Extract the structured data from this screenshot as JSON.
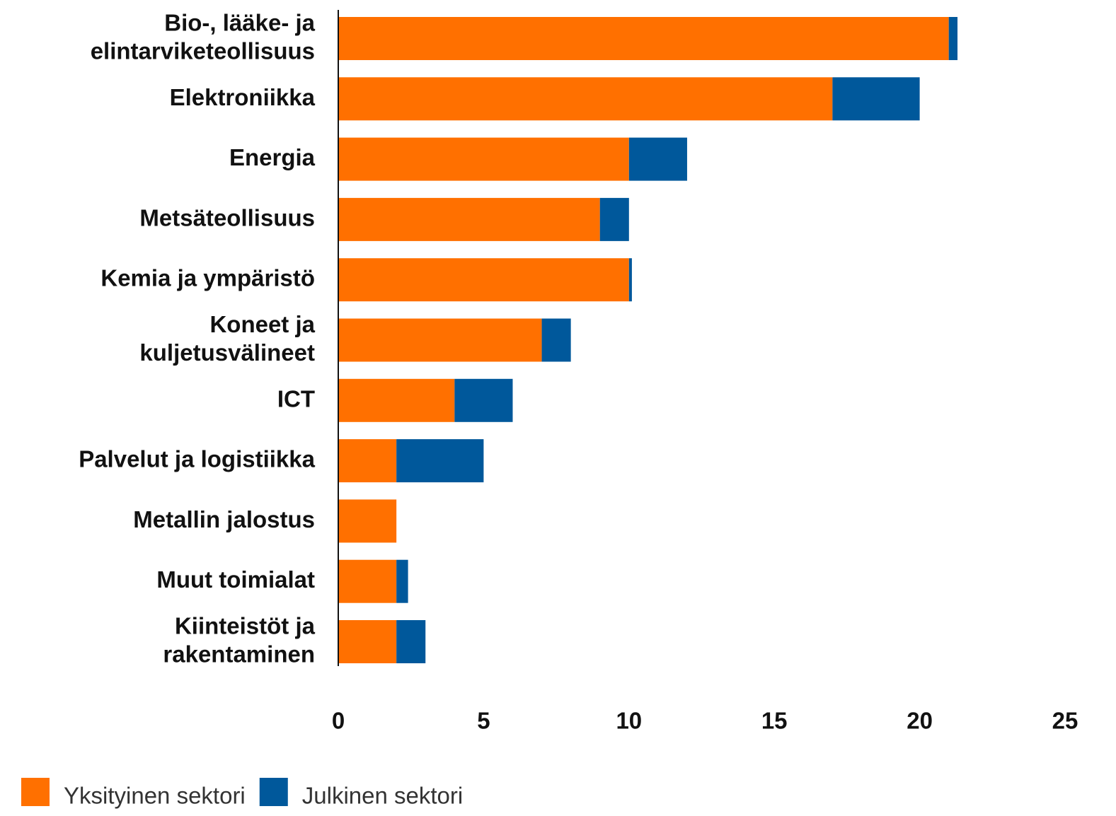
{
  "chart_data": {
    "type": "stacked-barh",
    "categories": [
      "Bio-, lääke- ja\nelintarviketeollisuus",
      "Elektroniikka",
      "Energia",
      "Metsäteollisuus",
      "Kemia ja ympäristö",
      "Koneet ja\nkuljetusvälineet",
      "ICT",
      "Palvelut ja logistiikka",
      "Metallin jalostus",
      "Muut toimialat",
      "Kiinteistöt ja\nrakentaminen"
    ],
    "series": [
      {
        "name": "Yksityinen sektori",
        "color": "#ff7000",
        "values": [
          21.0,
          17.0,
          10.0,
          9.0,
          10.0,
          7.0,
          4.0,
          2.0,
          2.0,
          2.0,
          2.0
        ]
      },
      {
        "name": "Julkinen sektori",
        "color": "#00589b",
        "values": [
          0.3,
          3.0,
          2.0,
          1.0,
          0.1,
          1.0,
          2.0,
          3.0,
          0,
          0.4,
          1.0
        ]
      }
    ],
    "xlim": [
      0,
      25
    ],
    "xticks": [
      0,
      5,
      10,
      15,
      20,
      25
    ],
    "grid": false
  }
}
